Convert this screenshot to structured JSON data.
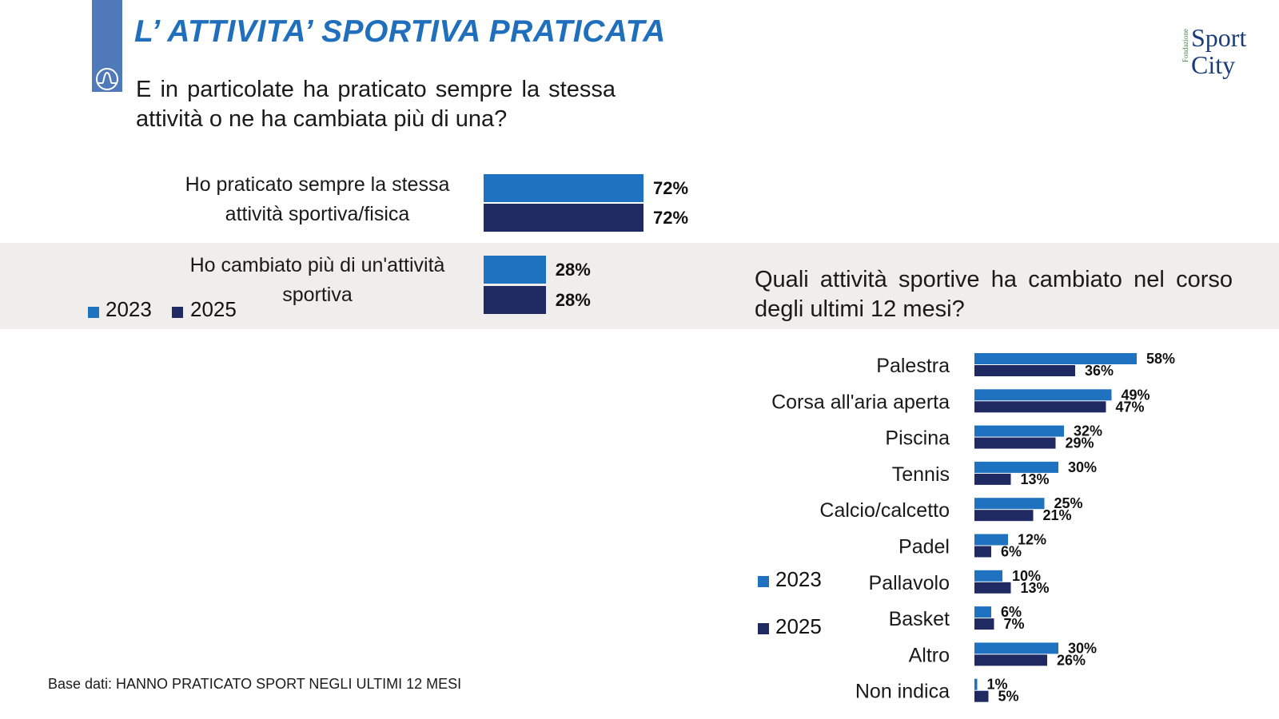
{
  "title": "L’ ATTIVITA’ SPORTIVA PRATICATA",
  "logo": {
    "small": "Fondazione",
    "line1": "Sport",
    "line2": "City"
  },
  "question1": "E in particolate ha praticato sempre la stessa attività o ne ha cambiata più di una?",
  "question2": "Quali attività sportive ha cambiato nel corso degli ultimi 12 mesi?",
  "footer": "Base dati: HANNO PRATICATO SPORT NEGLI ULTIMI 12 MESI",
  "colors": {
    "y2023": "#1f72c0",
    "y2025": "#1f2a63",
    "band": "#efeeec",
    "title": "#1f6fbd"
  },
  "legend1": {
    "y2023": "2023",
    "y2025": "2025"
  },
  "legend2": {
    "y2023": "2023",
    "y2025": "2025"
  },
  "chart_data": [
    {
      "type": "bar",
      "orientation": "horizontal",
      "title": "E in particolate ha praticato sempre la stessa attività o ne ha cambiata più di una?",
      "categories": [
        {
          "line1": "Ho praticato sempre la stessa",
          "line2": "attività sportiva/fisica"
        },
        {
          "line1": "Ho cambiato più di un'attività",
          "line2": "sportiva"
        }
      ],
      "series": [
        {
          "name": "2023",
          "values": [
            72,
            28
          ],
          "labels": [
            "72%",
            "28%"
          ]
        },
        {
          "name": "2025",
          "values": [
            72,
            28
          ],
          "labels": [
            "72%",
            "28%"
          ]
        }
      ],
      "unit": "%",
      "legend": "bottom-left"
    },
    {
      "type": "bar",
      "orientation": "horizontal",
      "title": "Quali attività sportive ha cambiato nel corso degli ultimi 12 mesi?",
      "categories": [
        "Palestra",
        "Corsa all'aria aperta",
        "Piscina",
        "Tennis",
        "Calcio/calcetto",
        "Padel",
        "Pallavolo",
        "Basket",
        "Altro",
        "Non indica"
      ],
      "series": [
        {
          "name": "2023",
          "values": [
            58,
            49,
            32,
            30,
            25,
            12,
            10,
            6,
            30,
            1
          ],
          "labels": [
            "58%",
            "49%",
            "32%",
            "30%",
            "25%",
            "12%",
            "10%",
            "6%",
            "30%",
            "1%"
          ]
        },
        {
          "name": "2025",
          "values": [
            36,
            47,
            29,
            13,
            21,
            6,
            13,
            7,
            26,
            5
          ],
          "labels": [
            "36%",
            "47%",
            "29%",
            "13%",
            "21%",
            "6%",
            "13%",
            "7%",
            "26%",
            "5%"
          ]
        }
      ],
      "unit": "%",
      "legend": "left"
    }
  ]
}
